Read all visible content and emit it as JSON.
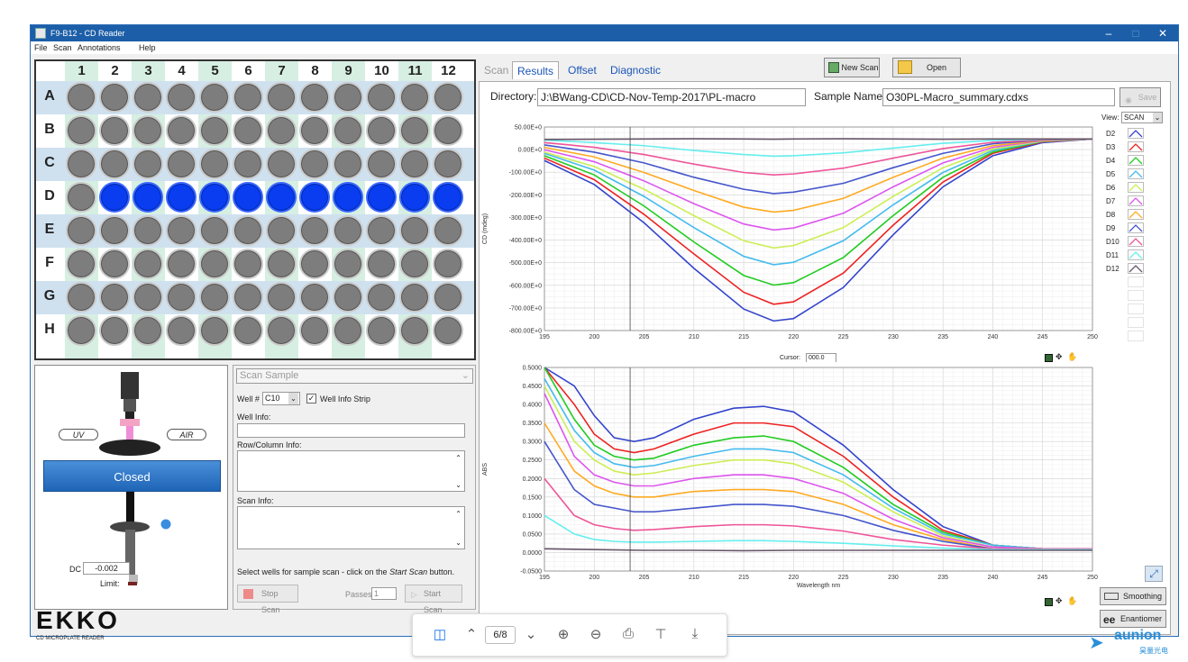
{
  "window": {
    "title": "F9-B12 - CD Reader"
  },
  "menu": [
    "File",
    "Scan",
    "Annotations",
    "Help"
  ],
  "plate": {
    "cols": [
      "1",
      "2",
      "3",
      "4",
      "5",
      "6",
      "7",
      "8",
      "9",
      "10",
      "11",
      "12"
    ],
    "rows": [
      "A",
      "B",
      "C",
      "D",
      "E",
      "F",
      "G",
      "H"
    ],
    "selected_row": "D",
    "selected_cols": [
      2,
      3,
      4,
      5,
      6,
      7,
      8,
      9,
      10,
      11,
      12
    ]
  },
  "instrument": {
    "uv_label": "UV",
    "air_label": "AIR",
    "status_button": "Closed",
    "dc_label": "DC",
    "dc_value": "-0.002",
    "limit_label": "Limit:"
  },
  "scan_sample": {
    "title": "Scan Sample",
    "well_label": "Well #",
    "well_value": "C10",
    "well_info_strip": "Well Info Strip",
    "well_info_label": "Well Info:",
    "row_col_label": "Row/Column Info:",
    "scan_info_label": "Scan Info:",
    "hint_pre": "Select wells for sample scan - click on the ",
    "hint_em": "Start Scan",
    "hint_post": " button.",
    "stop_scan": "Stop Scan",
    "passes_label": "Passes:",
    "passes_value": "1",
    "start_scan": "Start Scan"
  },
  "tabs": [
    "Scan",
    "Results",
    "Offset",
    "Diagnostic"
  ],
  "active_tab": "Results",
  "toolbar": {
    "new_scan": "New Scan",
    "open": "Open",
    "save": "Save"
  },
  "results": {
    "directory_label": "Directory:",
    "directory_value": "J:\\BWang-CD\\CD-Nov-Temp-2017\\PL-macro",
    "sample_label": "Sample Name:",
    "sample_value": "O30PL-Macro_summary.cdxs",
    "view_label": "View:",
    "view_value": "SCAN",
    "cursor_label": "Cursor:",
    "cursor_value": "000.0"
  },
  "legend": [
    "D2",
    "D3",
    "D4",
    "D5",
    "D6",
    "D7",
    "D8",
    "D9",
    "D10",
    "D11",
    "D12"
  ],
  "colors": {
    "D2": "#3344cc",
    "D3": "#ee2222",
    "D4": "#22cc22",
    "D5": "#44bbee",
    "D6": "#ccee55",
    "D7": "#dd55ee",
    "D8": "#ffaa22",
    "D9": "#4455cc",
    "D10": "#ee5599",
    "D11": "#66eeee",
    "D12": "#665566"
  },
  "right_buttons": {
    "smoothing": "Smoothing",
    "enantiomer": "Enantiomer"
  },
  "pdf_toolbar": {
    "page": "6/8"
  },
  "logo": {
    "brand": "EKKO",
    "tagline": "CD MICROPLATE READER"
  },
  "watermark": {
    "brand": "aunion",
    "sub": "昊量光电"
  },
  "chart_data": [
    {
      "type": "line",
      "title": "",
      "xlabel": "",
      "ylabel": "CD (mdeg)",
      "xlim": [
        195,
        250
      ],
      "ylim": [
        -800,
        50
      ],
      "xticks": [
        "195",
        "200",
        "205",
        "210",
        "215",
        "220",
        "225",
        "230",
        "235",
        "240",
        "245",
        "250"
      ],
      "yticks": [
        "50.00E+0",
        "0.00E+0",
        "-100.00E+0",
        "-200.00E+0",
        "-300.00E+0",
        "-400.00E+0",
        "-500.00E+0",
        "-600.00E+0",
        "-700.00E+0",
        "-800.00E+0"
      ],
      "series": [
        {
          "name": "D2",
          "x": [
            195,
            200,
            205,
            210,
            215,
            218,
            220,
            225,
            230,
            235,
            240,
            245,
            250
          ],
          "y": [
            -90,
            -190,
            -350,
            -540,
            -710,
            -760,
            -750,
            -620,
            -400,
            -200,
            -70,
            -15,
            0
          ]
        },
        {
          "name": "D3",
          "x": [
            195,
            200,
            205,
            210,
            215,
            218,
            220,
            225,
            230,
            235,
            240,
            245,
            250
          ],
          "y": [
            -80,
            -170,
            -315,
            -480,
            -640,
            -690,
            -680,
            -560,
            -360,
            -180,
            -60,
            -12,
            0
          ]
        },
        {
          "name": "D4",
          "x": [
            195,
            200,
            205,
            210,
            215,
            218,
            220,
            225,
            230,
            235,
            240,
            245,
            250
          ],
          "y": [
            -70,
            -150,
            -280,
            -430,
            -570,
            -610,
            -600,
            -495,
            -320,
            -160,
            -55,
            -10,
            0
          ]
        },
        {
          "name": "D5",
          "x": [
            195,
            200,
            205,
            210,
            215,
            218,
            220,
            225,
            230,
            235,
            240,
            245,
            250
          ],
          "y": [
            -60,
            -130,
            -240,
            -370,
            -490,
            -525,
            -515,
            -425,
            -275,
            -140,
            -48,
            -9,
            0
          ]
        },
        {
          "name": "D6",
          "x": [
            195,
            200,
            205,
            210,
            215,
            218,
            220,
            225,
            230,
            235,
            240,
            245,
            250
          ],
          "y": [
            -55,
            -115,
            -210,
            -320,
            -425,
            -455,
            -445,
            -370,
            -240,
            -120,
            -42,
            -8,
            0
          ]
        },
        {
          "name": "D7",
          "x": [
            195,
            200,
            205,
            210,
            215,
            218,
            220,
            225,
            230,
            235,
            240,
            245,
            250
          ],
          "y": [
            -45,
            -95,
            -175,
            -270,
            -355,
            -380,
            -372,
            -310,
            -200,
            -100,
            -35,
            -7,
            0
          ]
        },
        {
          "name": "D8",
          "x": [
            195,
            200,
            205,
            210,
            215,
            218,
            220,
            225,
            230,
            235,
            240,
            245,
            250
          ],
          "y": [
            -35,
            -75,
            -140,
            -215,
            -285,
            -305,
            -298,
            -248,
            -160,
            -80,
            -28,
            -6,
            0
          ]
        },
        {
          "name": "D9",
          "x": [
            195,
            200,
            205,
            210,
            215,
            218,
            220,
            225,
            230,
            235,
            240,
            245,
            250
          ],
          "y": [
            -25,
            -55,
            -100,
            -160,
            -210,
            -228,
            -222,
            -185,
            -120,
            -60,
            -20,
            -4,
            0
          ]
        },
        {
          "name": "D10",
          "x": [
            195,
            200,
            205,
            210,
            215,
            218,
            220,
            225,
            230,
            235,
            240,
            245,
            250
          ],
          "y": [
            -15,
            -35,
            -65,
            -105,
            -140,
            -150,
            -146,
            -122,
            -80,
            -40,
            -14,
            -3,
            0
          ]
        },
        {
          "name": "D11",
          "x": [
            195,
            200,
            205,
            210,
            215,
            218,
            220,
            225,
            230,
            235,
            240,
            245,
            250
          ],
          "y": [
            -5,
            -15,
            -28,
            -48,
            -65,
            -72,
            -70,
            -58,
            -38,
            -18,
            -6,
            -1,
            0
          ]
        },
        {
          "name": "D12",
          "x": [
            195,
            200,
            205,
            210,
            215,
            218,
            220,
            225,
            230,
            235,
            240,
            245,
            250
          ],
          "y": [
            -2,
            -1,
            0,
            1,
            0,
            -1,
            0,
            1,
            0,
            -1,
            0,
            0,
            0
          ]
        }
      ]
    },
    {
      "type": "line",
      "title": "",
      "xlabel": "Wavelength nm",
      "ylabel": "ABS",
      "xlim": [
        195,
        250
      ],
      "ylim": [
        -0.05,
        0.5
      ],
      "xticks": [
        "195",
        "200",
        "205",
        "210",
        "215",
        "220",
        "225",
        "230",
        "235",
        "240",
        "245",
        "250"
      ],
      "yticks": [
        "0.5000",
        "0.4500",
        "0.4000",
        "0.3500",
        "0.3000",
        "0.2500",
        "0.2000",
        "0.1500",
        "0.1000",
        "0.0500",
        "0.0000",
        "-0.0500"
      ],
      "series": [
        {
          "name": "D2",
          "x": [
            195,
            198,
            200,
            202,
            204,
            206,
            210,
            214,
            217,
            220,
            225,
            230,
            235,
            240,
            245,
            250
          ],
          "y": [
            0.5,
            0.45,
            0.37,
            0.31,
            0.3,
            0.31,
            0.36,
            0.39,
            0.395,
            0.38,
            0.29,
            0.17,
            0.07,
            0.02,
            0.01,
            0.01
          ]
        },
        {
          "name": "D3",
          "x": [
            195,
            198,
            200,
            202,
            204,
            206,
            210,
            214,
            217,
            220,
            225,
            230,
            235,
            240,
            245,
            250
          ],
          "y": [
            0.5,
            0.4,
            0.32,
            0.28,
            0.27,
            0.28,
            0.32,
            0.35,
            0.35,
            0.34,
            0.26,
            0.15,
            0.06,
            0.02,
            0.01,
            0.01
          ]
        },
        {
          "name": "D4",
          "x": [
            195,
            198,
            200,
            202,
            204,
            206,
            210,
            214,
            217,
            220,
            225,
            230,
            235,
            240,
            245,
            250
          ],
          "y": [
            0.5,
            0.36,
            0.29,
            0.26,
            0.25,
            0.255,
            0.29,
            0.31,
            0.315,
            0.3,
            0.23,
            0.13,
            0.055,
            0.02,
            0.01,
            0.01
          ]
        },
        {
          "name": "D5",
          "x": [
            195,
            198,
            200,
            202,
            204,
            206,
            210,
            214,
            217,
            220,
            225,
            230,
            235,
            240,
            245,
            250
          ],
          "y": [
            0.47,
            0.33,
            0.27,
            0.24,
            0.23,
            0.235,
            0.26,
            0.28,
            0.28,
            0.27,
            0.21,
            0.12,
            0.05,
            0.02,
            0.01,
            0.01
          ]
        },
        {
          "name": "D6",
          "x": [
            195,
            198,
            200,
            202,
            204,
            206,
            210,
            214,
            217,
            220,
            225,
            230,
            235,
            240,
            245,
            250
          ],
          "y": [
            0.45,
            0.3,
            0.25,
            0.22,
            0.21,
            0.215,
            0.235,
            0.25,
            0.25,
            0.24,
            0.19,
            0.11,
            0.045,
            0.015,
            0.01,
            0.01
          ]
        },
        {
          "name": "D7",
          "x": [
            195,
            198,
            200,
            202,
            204,
            206,
            210,
            214,
            217,
            220,
            225,
            230,
            235,
            240,
            245,
            250
          ],
          "y": [
            0.43,
            0.26,
            0.21,
            0.19,
            0.18,
            0.18,
            0.2,
            0.21,
            0.21,
            0.2,
            0.16,
            0.09,
            0.04,
            0.015,
            0.01,
            0.01
          ]
        },
        {
          "name": "D8",
          "x": [
            195,
            198,
            200,
            202,
            204,
            206,
            210,
            214,
            217,
            220,
            225,
            230,
            235,
            240,
            245,
            250
          ],
          "y": [
            0.35,
            0.22,
            0.18,
            0.16,
            0.15,
            0.15,
            0.165,
            0.17,
            0.17,
            0.165,
            0.13,
            0.075,
            0.035,
            0.01,
            0.01,
            0.01
          ]
        },
        {
          "name": "D9",
          "x": [
            195,
            198,
            200,
            202,
            204,
            206,
            210,
            214,
            217,
            220,
            225,
            230,
            235,
            240,
            245,
            250
          ],
          "y": [
            0.3,
            0.17,
            0.13,
            0.12,
            0.11,
            0.11,
            0.12,
            0.13,
            0.13,
            0.125,
            0.1,
            0.06,
            0.03,
            0.01,
            0.01,
            0.01
          ]
        },
        {
          "name": "D10",
          "x": [
            195,
            198,
            200,
            202,
            204,
            206,
            210,
            214,
            217,
            220,
            225,
            230,
            235,
            240,
            245,
            250
          ],
          "y": [
            0.2,
            0.1,
            0.075,
            0.065,
            0.06,
            0.062,
            0.07,
            0.075,
            0.075,
            0.072,
            0.058,
            0.035,
            0.02,
            0.01,
            0.01,
            0.01
          ]
        },
        {
          "name": "D11",
          "x": [
            195,
            198,
            200,
            202,
            204,
            206,
            210,
            214,
            217,
            220,
            225,
            230,
            235,
            240,
            245,
            250
          ],
          "y": [
            0.1,
            0.05,
            0.035,
            0.03,
            0.028,
            0.028,
            0.03,
            0.032,
            0.032,
            0.03,
            0.025,
            0.018,
            0.012,
            0.008,
            0.008,
            0.008
          ]
        },
        {
          "name": "D12",
          "x": [
            195,
            200,
            205,
            210,
            215,
            220,
            225,
            230,
            235,
            240,
            245,
            250
          ],
          "y": [
            0.01,
            0.008,
            0.006,
            0.006,
            0.005,
            0.006,
            0.006,
            0.006,
            0.006,
            0.006,
            0.006,
            0.006
          ]
        }
      ]
    }
  ]
}
